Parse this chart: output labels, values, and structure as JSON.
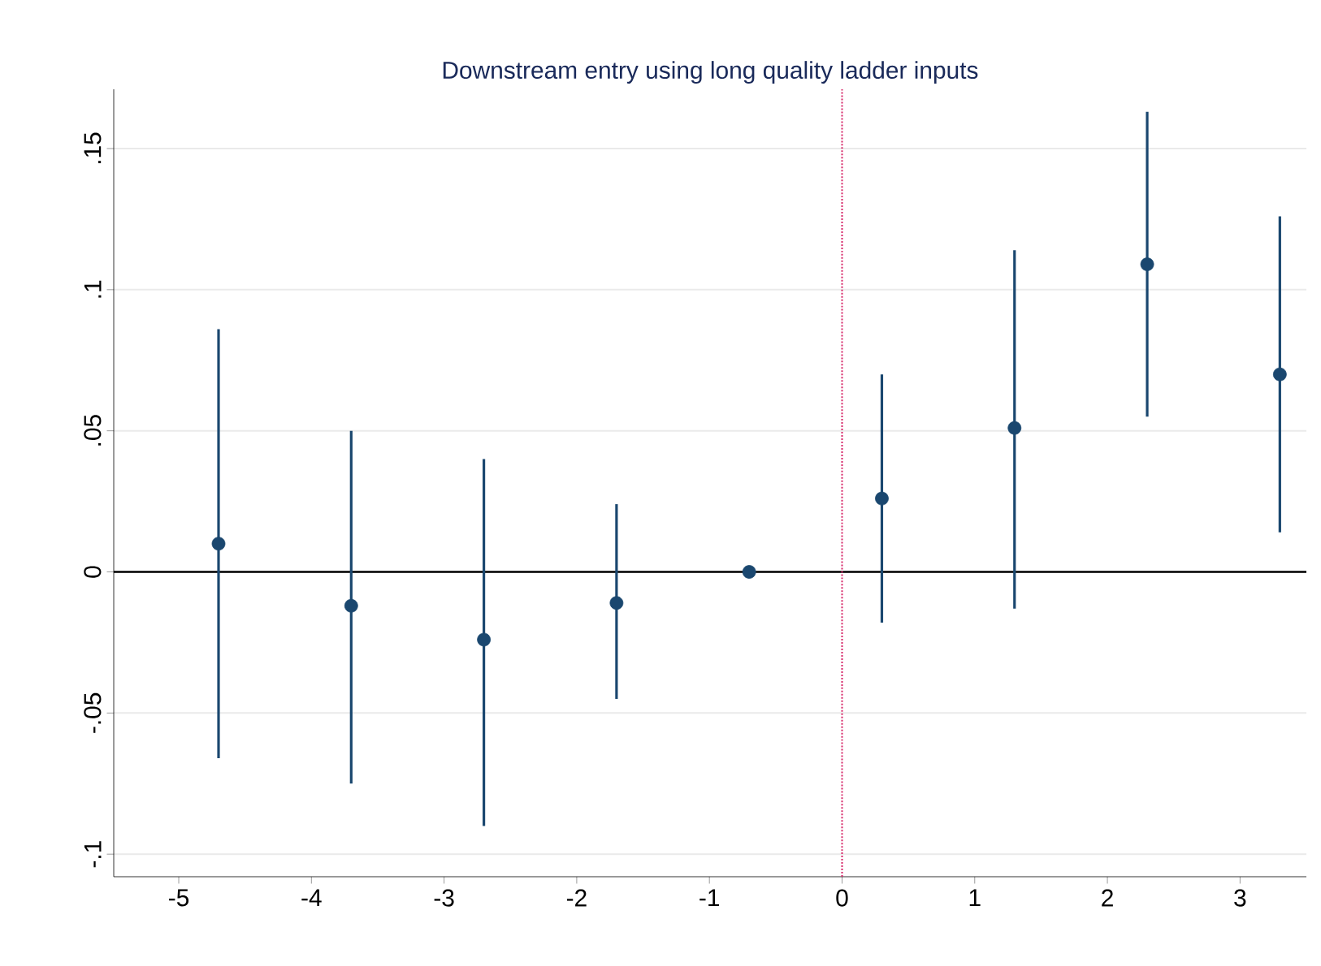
{
  "chart_data": {
    "type": "scatter",
    "title": "Downstream entry using long quality ladder inputs",
    "x": [
      -4.7,
      -3.7,
      -2.7,
      -1.7,
      -0.7,
      0.3,
      1.3,
      2.3,
      3.3
    ],
    "values": [
      0.01,
      -0.012,
      -0.024,
      -0.011,
      0,
      0.026,
      0.051,
      0.109,
      0.07
    ],
    "errors": [
      [
        -0.066,
        0.086
      ],
      [
        -0.075,
        0.05
      ],
      [
        -0.09,
        0.04
      ],
      [
        -0.045,
        0.024
      ],
      null,
      [
        -0.018,
        0.07
      ],
      [
        -0.013,
        0.114
      ],
      [
        0.055,
        0.163
      ],
      [
        0.014,
        0.126
      ]
    ],
    "color": "#1a476f",
    "marker": "circle",
    "xlim": [
      -5.49,
      3.5
    ],
    "ylim": [
      -0.108,
      0.171
    ],
    "xticks": [
      -5,
      -4,
      -3,
      -2,
      -1,
      0,
      1,
      2,
      3
    ],
    "yticks": [
      {
        "value": -0.1,
        "label": "-.1"
      },
      {
        "value": -0.05,
        "label": "-.05"
      },
      {
        "value": 0,
        "label": "0"
      },
      {
        "value": 0.05,
        "label": ".05"
      },
      {
        "value": 0.1,
        "label": ".1"
      },
      {
        "value": 0.15,
        "label": ".15"
      }
    ],
    "grid": "y",
    "ref_lines": [
      {
        "axis": "y",
        "value": 0,
        "color": "#000000",
        "line_style": "solid"
      },
      {
        "axis": "x",
        "value": 0,
        "color": "#d62768",
        "line_style": "dotted"
      }
    ]
  }
}
